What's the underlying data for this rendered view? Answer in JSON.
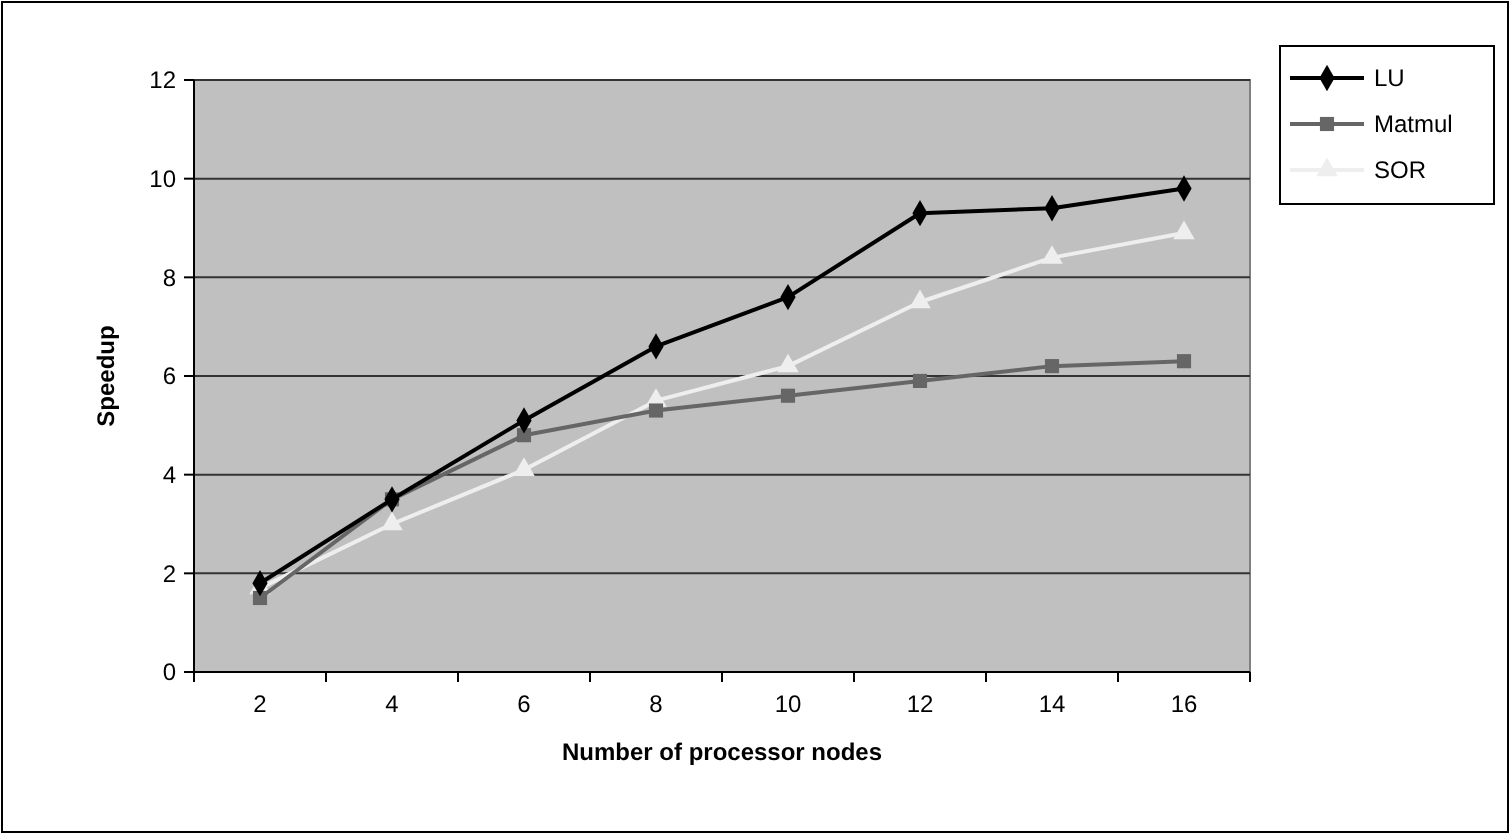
{
  "chart_data": {
    "type": "line",
    "xlabel": "Number of processor nodes",
    "ylabel": "Speedup",
    "categories": [
      "2",
      "4",
      "6",
      "8",
      "10",
      "12",
      "14",
      "16"
    ],
    "ylim": [
      0,
      12
    ],
    "yticks": [
      0,
      2,
      4,
      6,
      8,
      10,
      12
    ],
    "grid": "y",
    "legend": "top right",
    "series": [
      {
        "name": "LU",
        "color": "#000000",
        "marker": "diamond",
        "values": [
          1.8,
          3.5,
          5.1,
          6.6,
          7.6,
          9.3,
          9.4,
          9.8
        ]
      },
      {
        "name": "Matmul",
        "color": "#666666",
        "marker": "square",
        "values": [
          1.5,
          3.5,
          4.8,
          5.3,
          5.6,
          5.9,
          6.2,
          6.3
        ]
      },
      {
        "name": "SOR",
        "color": "#eeeeee",
        "marker": "triangle",
        "values": [
          1.7,
          3.0,
          4.1,
          5.5,
          6.2,
          7.5,
          8.4,
          8.9
        ]
      }
    ]
  }
}
